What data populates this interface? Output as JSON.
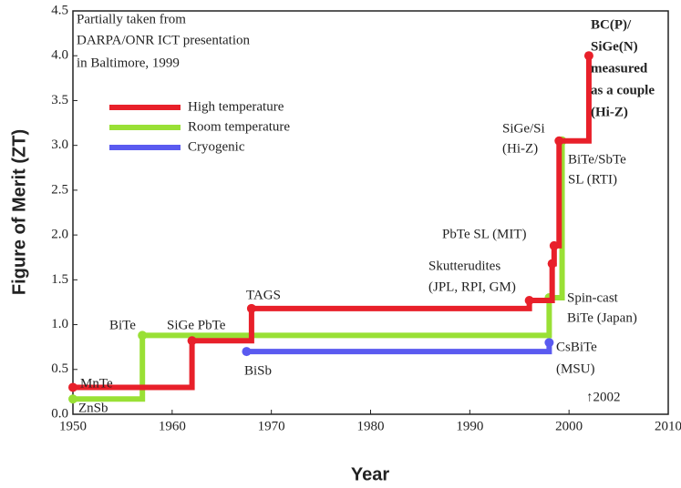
{
  "chart_data": {
    "type": "line",
    "drawstyle": "steps-post",
    "xlabel": "Year",
    "ylabel": "Figure of Merit (ZT)",
    "xlim": [
      1950,
      2010
    ],
    "xticks": [
      1950,
      1960,
      1970,
      1980,
      1990,
      2000,
      2010
    ],
    "ylim": [
      0,
      4.5
    ],
    "yticks": [
      {
        "value": 0,
        "label": "0.0"
      },
      0.5,
      {
        "value": 1,
        "label": "1.0"
      },
      1.5,
      {
        "value": 2,
        "label": "2.0"
      },
      2.5,
      {
        "value": 3,
        "label": "3.0"
      },
      3.5,
      {
        "value": 4,
        "label": "4.0"
      },
      4.5
    ],
    "legend": "upper left",
    "series": [
      {
        "name": "High temperature",
        "color": "#e8202a",
        "x": [
          1950,
          1962,
          1968,
          1996,
          1998.3,
          1998.5,
          1999,
          2002
        ],
        "values": [
          0.3,
          0.82,
          1.18,
          1.27,
          1.68,
          1.88,
          3.05,
          4.0
        ]
      },
      {
        "name": "Room temperature",
        "color": "#99e035",
        "x": [
          1950,
          1957,
          1998,
          1999.3
        ],
        "values": [
          0.17,
          0.88,
          1.3,
          3.05
        ]
      },
      {
        "name": "Cryogenic",
        "color": "#5a5af0",
        "x": [
          1967.5,
          1998
        ],
        "values": [
          0.7,
          0.8
        ]
      }
    ],
    "annotations": [
      "Partially taken from",
      "DARPA/ONR ICT presentation",
      "in Baltimore, 1999",
      "MnTe",
      "ZnSb",
      "BiTe",
      "SiGe PbTe",
      "BiSb",
      "TAGS",
      "Skutterudites",
      "(JPL, RPI, GM)",
      "PbTe SL (MIT)",
      "SiGe/Si",
      "(Hi-Z)",
      "BiTe/SbTe",
      "SL (RTI)",
      "Spin-cast",
      "BiTe (Japan)",
      "CsBiTe",
      "(MSU)",
      "↑2002",
      "BC(P)/",
      "SiGe(N)",
      "measured",
      "as a couple",
      "(Hi-Z)"
    ]
  }
}
